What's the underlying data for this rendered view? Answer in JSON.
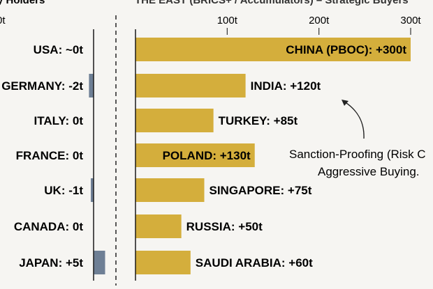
{
  "header": {
    "left_fragment": "y Holders",
    "right_fragment": "THE EAST (BRICS+ / Accumulators) – Strategic Buyers"
  },
  "left_panel": {
    "tick_label": "0t"
  },
  "annotation": {
    "line1": "Sanction-Proofing (Risk C",
    "line2": "Aggressive Buying."
  },
  "colors": {
    "gold": "#d4ae3c",
    "slate": "#6e7f95",
    "background": "#f6f5f2",
    "text": "#111111"
  },
  "chart_data": [
    {
      "type": "bar",
      "orientation": "horizontal",
      "categories": [
        "USA",
        "GERMANY",
        "ITALY",
        "FRANCE",
        "UK",
        "CANADA",
        "JAPAN"
      ],
      "labels": [
        "USA: ~0t",
        "GERMANY: -2t",
        "ITALY: 0t",
        "FRANCE: 0t",
        "UK: -1t",
        "CANADA: 0t",
        "JAPAN: +5t"
      ],
      "values": [
        0,
        -2,
        0,
        0,
        -1,
        0,
        5
      ],
      "color": "#6e7f95"
    },
    {
      "type": "bar",
      "orientation": "horizontal",
      "categories": [
        "CHINA (PBOC)",
        "INDIA",
        "TURKEY",
        "POLAND",
        "SINGAPORE",
        "RUSSIA",
        "SAUDI ARABIA"
      ],
      "labels": [
        "CHINA (PBOC): +300t",
        "INDIA: +120t",
        "TURKEY: +85t",
        "POLAND: +130t",
        "SINGAPORE: +75t",
        "RUSSIA: +50t",
        "SAUDI ARABIA: +60t"
      ],
      "values": [
        300,
        120,
        85,
        130,
        75,
        50,
        60
      ],
      "label_inside": [
        true,
        false,
        false,
        true,
        false,
        false,
        false
      ],
      "xticks": [
        100,
        200,
        300
      ],
      "xtick_labels": [
        "100t",
        "200t",
        "300t"
      ],
      "xlim": [
        0,
        300
      ],
      "color": "#d4ae3c"
    }
  ]
}
